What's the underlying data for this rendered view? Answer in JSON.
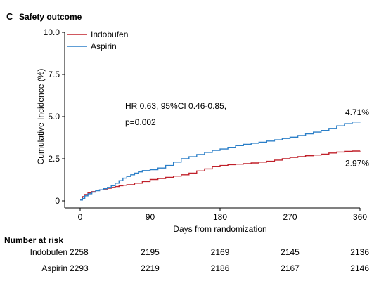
{
  "chart_data": {
    "type": "line",
    "panel_letter": "C",
    "title": "Safety outcome",
    "xlabel": "Days from randomization",
    "ylabel": "Cumulative Incidence (%)",
    "xlim": [
      0,
      360
    ],
    "ylim": [
      0,
      10
    ],
    "x_ticks": [
      0,
      90,
      180,
      270,
      360
    ],
    "x_tick_labels": [
      "0",
      "90",
      "180",
      "270",
      "360"
    ],
    "y_ticks": [
      0,
      2.5,
      5,
      7.5,
      10
    ],
    "y_tick_labels": [
      "0",
      "2.5",
      "5.0",
      "7.5",
      "10.0"
    ],
    "grid": false,
    "legend_position": "top-left",
    "series": [
      {
        "name": "Indobufen",
        "color": "#c0202a",
        "end_label": "2.97%",
        "x": [
          0,
          3,
          6,
          10,
          15,
          20,
          25,
          30,
          35,
          40,
          45,
          50,
          55,
          60,
          70,
          80,
          90,
          100,
          110,
          120,
          130,
          140,
          150,
          160,
          170,
          180,
          190,
          200,
          210,
          220,
          230,
          240,
          250,
          260,
          270,
          280,
          290,
          300,
          310,
          320,
          330,
          340,
          350,
          360
        ],
        "y": [
          0.05,
          0.25,
          0.38,
          0.48,
          0.55,
          0.62,
          0.66,
          0.7,
          0.75,
          0.8,
          0.85,
          0.9,
          0.93,
          0.96,
          1.05,
          1.15,
          1.27,
          1.33,
          1.4,
          1.47,
          1.55,
          1.65,
          1.78,
          1.9,
          2.03,
          2.1,
          2.15,
          2.18,
          2.21,
          2.25,
          2.3,
          2.35,
          2.42,
          2.5,
          2.58,
          2.63,
          2.68,
          2.72,
          2.77,
          2.84,
          2.9,
          2.94,
          2.96,
          2.97
        ]
      },
      {
        "name": "Aspirin",
        "color": "#2b7fc8",
        "end_label": "4.71%",
        "x": [
          0,
          3,
          6,
          10,
          15,
          20,
          25,
          30,
          35,
          40,
          45,
          50,
          55,
          60,
          65,
          70,
          75,
          80,
          90,
          100,
          110,
          120,
          130,
          140,
          150,
          160,
          170,
          180,
          190,
          200,
          210,
          220,
          230,
          240,
          250,
          260,
          270,
          280,
          290,
          300,
          310,
          320,
          330,
          340,
          350,
          360
        ],
        "y": [
          0.05,
          0.15,
          0.3,
          0.42,
          0.52,
          0.6,
          0.66,
          0.72,
          0.8,
          0.9,
          1.05,
          1.2,
          1.35,
          1.45,
          1.55,
          1.65,
          1.72,
          1.8,
          1.85,
          1.95,
          2.1,
          2.3,
          2.5,
          2.62,
          2.75,
          2.88,
          3.0,
          3.08,
          3.18,
          3.28,
          3.36,
          3.42,
          3.48,
          3.55,
          3.62,
          3.7,
          3.78,
          3.88,
          3.98,
          4.08,
          4.18,
          4.3,
          4.45,
          4.58,
          4.68,
          4.71
        ]
      }
    ],
    "annotation": {
      "line1": "HR 0.63, 95%CI 0.46-0.85,",
      "line2": "p=0.002"
    },
    "risk_table": {
      "title": "Number at risk",
      "timepoints": [
        0,
        90,
        180,
        270,
        360
      ],
      "rows": [
        {
          "name": "Indobufen",
          "values": [
            "2258",
            "2195",
            "2169",
            "2145",
            "2136"
          ]
        },
        {
          "name": "Aspirin",
          "values": [
            "2293",
            "2219",
            "2186",
            "2167",
            "2146"
          ]
        }
      ]
    }
  }
}
